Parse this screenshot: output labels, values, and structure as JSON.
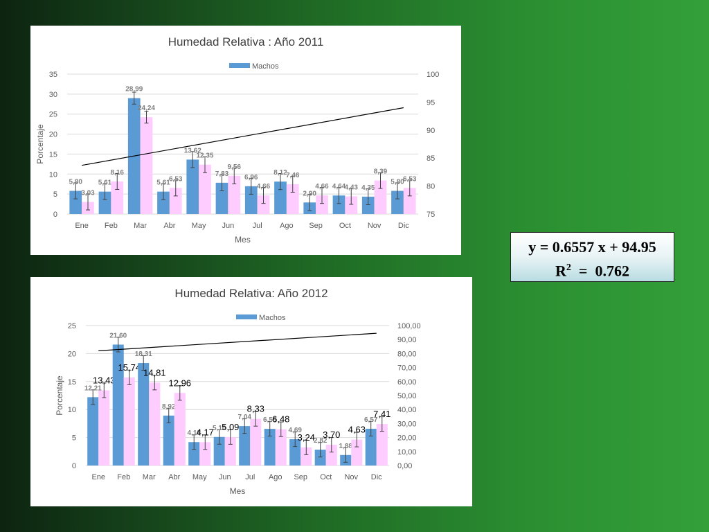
{
  "chart_data": [
    {
      "type": "bar",
      "title": "Humedad Relativa : Año 2011",
      "xlabel": "Mes",
      "ylabel": "Porcentaje",
      "legend": "Machos",
      "legend_position": "top",
      "categories": [
        "Ene",
        "Feb",
        "Mar",
        "Abr",
        "May",
        "Jun",
        "Jul",
        "Ago",
        "Sep",
        "Oct",
        "Nov",
        "Dic"
      ],
      "series": [
        {
          "name": "Machos",
          "color": "#5b9bd5",
          "values": [
            5.8,
            5.61,
            28.99,
            5.61,
            13.62,
            7.83,
            6.96,
            8.12,
            2.9,
            4.64,
            4.35,
            5.8
          ],
          "labels": [
            "5,80",
            "5,61",
            "28,99",
            "5,61",
            "13,62",
            "7,83",
            "6,96",
            "8,12",
            "2,90",
            "4,64",
            "4,35",
            "5,80"
          ]
        },
        {
          "color": "#ffccff",
          "values": [
            3.03,
            8.16,
            24.24,
            6.53,
            12.35,
            9.56,
            4.66,
            7.46,
            4.66,
            4.43,
            8.39,
            6.53
          ],
          "labels": [
            "3,03",
            "8,16",
            "24,24",
            "6,53",
            "12,35",
            "9,56",
            "4,66",
            "7,46",
            "4,66",
            "4,43",
            "8,39",
            "6,53"
          ]
        }
      ],
      "error": [
        2,
        2,
        1.5,
        2,
        2,
        2,
        2,
        2,
        2,
        2,
        2,
        2
      ],
      "ylim": [
        0,
        35
      ],
      "yticks": [
        "0",
        "5",
        "10",
        "15",
        "20",
        "25",
        "30",
        "35"
      ],
      "y2lim": [
        75,
        100
      ],
      "y2ticks": [
        "75",
        "80",
        "85",
        "90",
        "95",
        "100"
      ],
      "trendline": {
        "from_month": 1,
        "to_month": 12,
        "start": 83.7,
        "end": 94.0
      },
      "grid": true
    },
    {
      "type": "bar",
      "title": "Humedad Relativa: Año 2012",
      "xlabel": "Mes",
      "ylabel": "Porcentaje",
      "legend": "Machos",
      "legend_position": "top",
      "categories": [
        "Ene",
        "Feb",
        "Mar",
        "Abr",
        "May",
        "Jun",
        "Jul",
        "Ago",
        "Sep",
        "Oct",
        "Nov",
        "Dic"
      ],
      "series": [
        {
          "name": "Machos",
          "color": "#5b9bd5",
          "values": [
            12.21,
            21.6,
            18.31,
            8.92,
            4.18,
            5.1,
            7.04,
            6.55,
            4.69,
            2.82,
            1.88,
            6.57
          ],
          "labels": [
            "12,21",
            "21,60",
            "18,31",
            "8,92",
            "4,18",
            "5,10",
            "7,04",
            "6,55",
            "4,69",
            "2,82",
            "1,88",
            "6,57"
          ]
        },
        {
          "color": "#ffccff",
          "values": [
            13.43,
            15.74,
            14.81,
            12.96,
            4.17,
            5.09,
            8.33,
            6.48,
            3.24,
            3.7,
            4.63,
            7.41
          ],
          "labels": [
            "13,43",
            "15,74",
            "14,81",
            "12,96",
            "4,17",
            "5,09",
            "8,33",
            "6,48",
            "3,24",
            "3,70",
            "4,63",
            "7,41"
          ]
        }
      ],
      "error": [
        1.3,
        1.3,
        1.3,
        1.3,
        1.3,
        1.3,
        1.3,
        1.3,
        1.3,
        1.3,
        1.3,
        1.3
      ],
      "ylim": [
        0,
        25
      ],
      "yticks": [
        "0",
        "5",
        "10",
        "15",
        "20",
        "25"
      ],
      "y2lim": [
        0,
        100
      ],
      "y2ticks": [
        "0,00",
        "10,00",
        "20,00",
        "30,00",
        "40,00",
        "50,00",
        "60,00",
        "70,00",
        "80,00",
        "90,00",
        "100,00"
      ],
      "trendline": {
        "from_month": 1,
        "to_month": 12,
        "start": 82.0,
        "end": 94.5
      },
      "grid": true
    }
  ],
  "equation": {
    "line1": "y = 0.6557 x + 94.95",
    "line2_prefix": "R",
    "line2_sup": "2",
    "line2_suffix": "  =  0.762"
  }
}
